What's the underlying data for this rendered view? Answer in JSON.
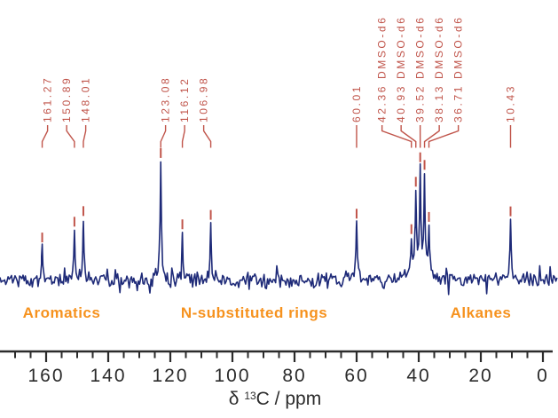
{
  "figure": {
    "kind": "13C NMR spectrum"
  },
  "colors": {
    "trace": "#1e2a78",
    "peak_annotation": "#c0544a",
    "region_label": "#f6921e",
    "axis": "#2b2b2b",
    "background": "#ffffff"
  },
  "chart_data": {
    "type": "line",
    "title": "",
    "xlabel": "δ 13C / ppm",
    "xlabel_parts": {
      "prefix": "δ ",
      "superscript": "13",
      "suffix": "C / ppm"
    },
    "ylabel": "",
    "x_axis": {
      "unit": "ppm",
      "min": -3,
      "max": 175,
      "reversed": true,
      "major_ticks": [
        160,
        140,
        120,
        100,
        80,
        60,
        40,
        20,
        0
      ],
      "minor_tick_step_ppm": 5
    },
    "grid": false,
    "legend": false,
    "solvent": "DMSO-d6",
    "peaks": [
      {
        "ppm": 161.27,
        "label": "161.27",
        "rel_intensity": 0.29
      },
      {
        "ppm": 150.89,
        "label": "150.89",
        "rel_intensity": 0.42
      },
      {
        "ppm": 148.01,
        "label": "148.01",
        "rel_intensity": 0.51
      },
      {
        "ppm": 123.08,
        "label": "123.08",
        "rel_intensity": 1.0
      },
      {
        "ppm": 116.12,
        "label": "116.12",
        "rel_intensity": 0.4
      },
      {
        "ppm": 106.98,
        "label": "106.98",
        "rel_intensity": 0.48
      },
      {
        "ppm": 60.01,
        "label": "60.01",
        "rel_intensity": 0.49
      },
      {
        "ppm": 42.36,
        "label": "42.36 DMSO-d6",
        "rel_intensity": 0.34
      },
      {
        "ppm": 40.93,
        "label": "40.93 DMSO-d6",
        "rel_intensity": 0.73
      },
      {
        "ppm": 39.52,
        "label": "39.52 DMSO-d6",
        "rel_intensity": 0.93
      },
      {
        "ppm": 38.13,
        "label": "38.13 DMSO-d6",
        "rel_intensity": 0.87
      },
      {
        "ppm": 36.71,
        "label": "36.71 DMSO-d6",
        "rel_intensity": 0.44
      },
      {
        "ppm": 10.43,
        "label": "10.43",
        "rel_intensity": 0.51
      }
    ],
    "regions": [
      {
        "label": "Aromatics",
        "ppm_center": 155
      },
      {
        "label": "N-substituted rings",
        "ppm_center": 93
      },
      {
        "label": "Alkanes",
        "ppm_center": 20
      }
    ]
  }
}
